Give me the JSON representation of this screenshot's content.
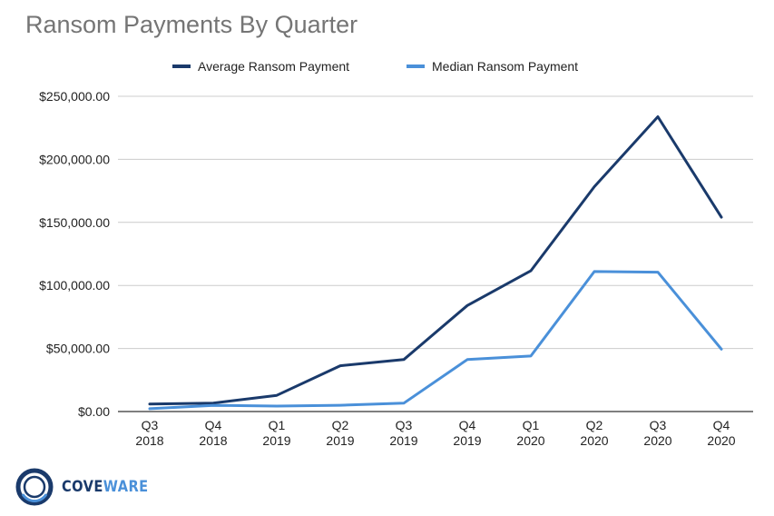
{
  "chart_data": {
    "type": "line",
    "title": "Ransom Payments By Quarter",
    "xlabel": "",
    "ylabel": "",
    "categories": [
      [
        "Q3",
        "2018"
      ],
      [
        "Q4",
        "2018"
      ],
      [
        "Q1",
        "2019"
      ],
      [
        "Q2",
        "2019"
      ],
      [
        "Q3",
        "2019"
      ],
      [
        "Q4",
        "2019"
      ],
      [
        "Q1",
        "2020"
      ],
      [
        "Q2",
        "2020"
      ],
      [
        "Q3",
        "2020"
      ],
      [
        "Q4",
        "2020"
      ]
    ],
    "ylim": [
      0,
      250000
    ],
    "yticks": [
      0,
      50000,
      100000,
      150000,
      200000,
      250000
    ],
    "ytick_labels": [
      "$0.00",
      "$50,000.00",
      "$100,000.00",
      "$150,000.00",
      "$200,000.00",
      "$250,000.00"
    ],
    "grid": true,
    "legend_position": "top",
    "series": [
      {
        "name": "Average Ransom Payment",
        "color": "#1a3a6b",
        "values": [
          6000,
          6700,
          12800,
          36300,
          41200,
          84100,
          111600,
          178300,
          233800,
          154100
        ]
      },
      {
        "name": "Median Ransom Payment",
        "color": "#4a90d9",
        "values": [
          2200,
          4900,
          4300,
          5000,
          6600,
          41200,
          44000,
          111000,
          110500,
          49500
        ]
      }
    ]
  },
  "logo": {
    "text_part1": "COVE",
    "text_part2": "WARE",
    "ring_color": "#1a3a6b",
    "accent_color": "#4a90d9"
  }
}
